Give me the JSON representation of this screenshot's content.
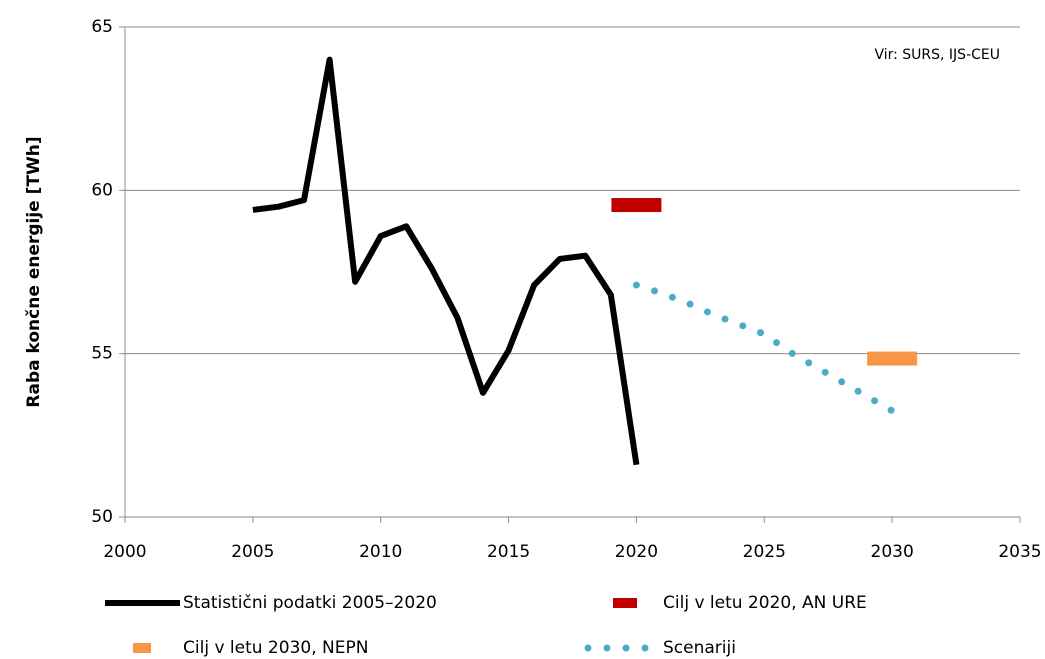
{
  "chart_data": {
    "type": "line",
    "ylabel": "Raba končne energije [TWh]",
    "annotation": "Vir: SURS, IJS-CEU",
    "xlim": [
      2000,
      2035
    ],
    "xticks": [
      2000,
      2005,
      2010,
      2015,
      2020,
      2025,
      2030,
      2035
    ],
    "ylim": [
      50,
      65
    ],
    "yticks": [
      50,
      55,
      60,
      65
    ],
    "grid": true,
    "series": [
      {
        "name": "Statistični podatki 2005–2020",
        "color": "#000000",
        "style": "line",
        "x": [
          2005,
          2006,
          2007,
          2008,
          2009,
          2010,
          2011,
          2012,
          2013,
          2014,
          2015,
          2016,
          2017,
          2018,
          2019,
          2020
        ],
        "values": [
          59.4,
          59.5,
          59.7,
          64.0,
          57.2,
          58.6,
          58.9,
          57.6,
          56.1,
          53.8,
          55.1,
          57.1,
          57.9,
          58.0,
          56.8,
          51.6
        ]
      },
      {
        "name": "Cilj v letu 2020, AN URE",
        "color": "#c00000",
        "style": "marker",
        "x": [
          2020
        ],
        "values": [
          59.55
        ]
      },
      {
        "name": "Cilj v letu 2030, NEPN",
        "color": "#f79646",
        "style": "marker",
        "x": [
          2030
        ],
        "values": [
          54.85
        ]
      },
      {
        "name": "Scenariji",
        "color": "#4bacc6",
        "style": "dotted",
        "x": [
          2020,
          2021,
          2022,
          2023,
          2024,
          2025,
          2026,
          2027,
          2028,
          2029,
          2030
        ],
        "values": [
          57.1,
          56.85,
          56.55,
          56.2,
          55.9,
          55.6,
          55.05,
          54.6,
          54.15,
          53.7,
          53.25
        ]
      }
    ]
  }
}
